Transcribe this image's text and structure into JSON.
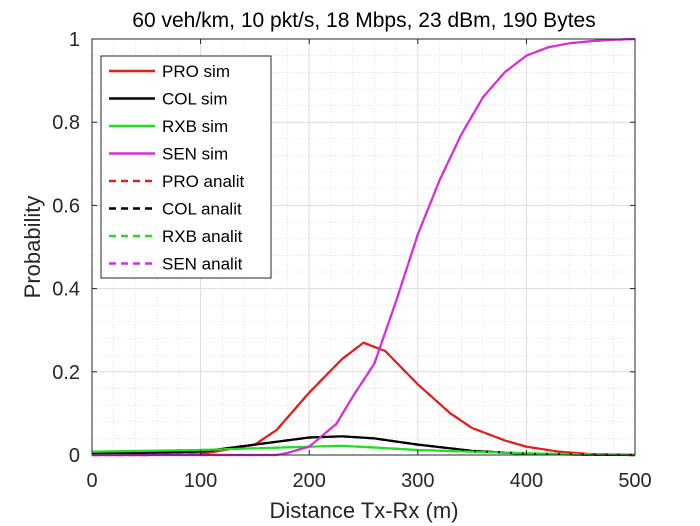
{
  "chart_data": {
    "type": "line",
    "title": "60 veh/km, 10 pkt/s, 18 Mbps, 23 dBm, 190 Bytes",
    "xlabel": "Distance Tx-Rx (m)",
    "ylabel": "Probability",
    "xlim": [
      0,
      500
    ],
    "ylim": [
      0,
      1
    ],
    "xticks": [
      0,
      100,
      200,
      300,
      400,
      500
    ],
    "xtick_labels": [
      "0",
      "100",
      "200",
      "300",
      "400",
      "500"
    ],
    "yticks": [
      0,
      0.2,
      0.4,
      0.6,
      0.8,
      1
    ],
    "ytick_labels": [
      "0",
      "0.2",
      "0.4",
      "0.6",
      "0.8",
      "1"
    ],
    "grid": true,
    "minor_grid": true,
    "legend_position": "top-left",
    "series": [
      {
        "name": "PRO sim",
        "color": "#e0201b",
        "dash": "solid",
        "x": [
          0,
          50,
          100,
          150,
          170,
          200,
          230,
          250,
          270,
          300,
          330,
          350,
          380,
          400,
          430,
          460,
          500
        ],
        "y": [
          0,
          0,
          0.002,
          0.025,
          0.06,
          0.15,
          0.23,
          0.27,
          0.25,
          0.17,
          0.1,
          0.065,
          0.035,
          0.02,
          0.008,
          0.002,
          0
        ]
      },
      {
        "name": "COL sim",
        "color": "#000000",
        "dash": "solid",
        "x": [
          0,
          100,
          150,
          200,
          230,
          260,
          300,
          350,
          400,
          450,
          500
        ],
        "y": [
          0.003,
          0.008,
          0.025,
          0.042,
          0.045,
          0.04,
          0.025,
          0.01,
          0.003,
          0.001,
          0
        ]
      },
      {
        "name": "RXB sim",
        "color": "#22dd22",
        "dash": "solid",
        "x": [
          0,
          100,
          150,
          200,
          230,
          260,
          300,
          350,
          400,
          450,
          500
        ],
        "y": [
          0.008,
          0.012,
          0.016,
          0.02,
          0.022,
          0.018,
          0.012,
          0.008,
          0.004,
          0.002,
          0.001
        ]
      },
      {
        "name": "SEN sim",
        "color": "#d62fd9",
        "dash": "solid",
        "x": [
          0,
          170,
          180,
          200,
          225,
          240,
          260,
          280,
          300,
          320,
          340,
          360,
          380,
          400,
          420,
          440,
          460,
          480,
          500
        ],
        "y": [
          0,
          0,
          0.005,
          0.02,
          0.075,
          0.14,
          0.22,
          0.37,
          0.53,
          0.66,
          0.77,
          0.86,
          0.92,
          0.96,
          0.98,
          0.99,
          0.995,
          0.998,
          1
        ]
      },
      {
        "name": "PRO analit",
        "color": "#e0201b",
        "dash": "dashed",
        "x": [
          0,
          50,
          100,
          150,
          170,
          200,
          230,
          250,
          270,
          300,
          330,
          350,
          380,
          400,
          430,
          460,
          500
        ],
        "y": [
          0,
          0,
          0.002,
          0.025,
          0.06,
          0.15,
          0.23,
          0.27,
          0.25,
          0.17,
          0.1,
          0.065,
          0.035,
          0.02,
          0.008,
          0.002,
          0
        ]
      },
      {
        "name": "COL analit",
        "color": "#000000",
        "dash": "dashed",
        "x": [
          0,
          100,
          150,
          200,
          230,
          260,
          300,
          350,
          400,
          450,
          500
        ],
        "y": [
          0.003,
          0.008,
          0.025,
          0.042,
          0.045,
          0.04,
          0.025,
          0.01,
          0.003,
          0.001,
          0
        ]
      },
      {
        "name": "RXB analit",
        "color": "#22dd22",
        "dash": "dashed",
        "x": [
          0,
          100,
          150,
          200,
          230,
          260,
          300,
          350,
          400,
          450,
          500
        ],
        "y": [
          0.008,
          0.012,
          0.016,
          0.02,
          0.022,
          0.018,
          0.012,
          0.008,
          0.004,
          0.002,
          0.001
        ]
      },
      {
        "name": "SEN analit",
        "color": "#d62fd9",
        "dash": "dashed",
        "x": [
          0,
          170,
          180,
          200,
          225,
          240,
          260,
          280,
          300,
          320,
          340,
          360,
          380,
          400,
          420,
          440,
          460,
          480,
          500
        ],
        "y": [
          0,
          0,
          0.005,
          0.02,
          0.075,
          0.14,
          0.22,
          0.37,
          0.53,
          0.66,
          0.77,
          0.86,
          0.92,
          0.96,
          0.98,
          0.99,
          0.995,
          0.998,
          1
        ]
      }
    ]
  }
}
